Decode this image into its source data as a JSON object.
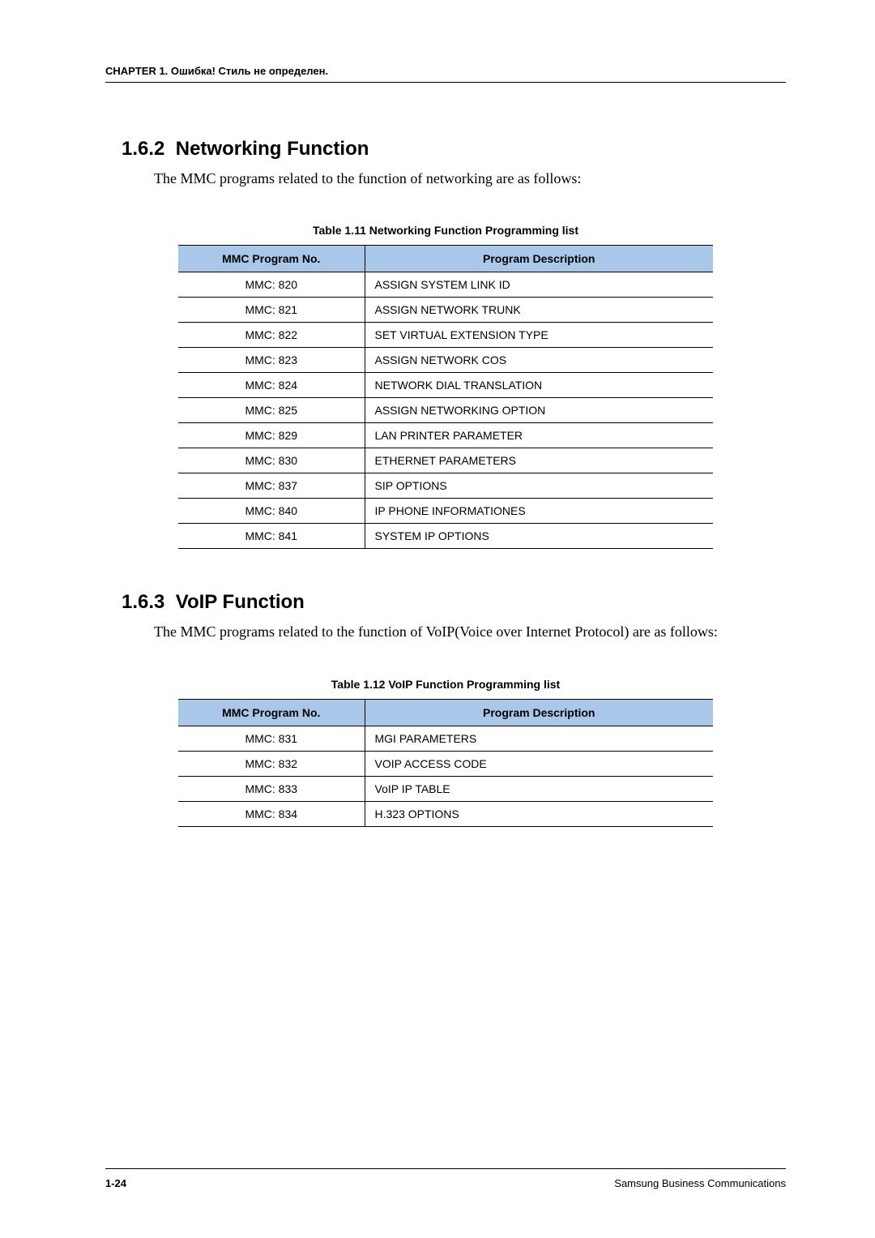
{
  "header": {
    "chapter_label": "CHAPTER 1. Ошибка! Стиль не определен."
  },
  "section1": {
    "number": "1.6.2",
    "title": "Networking Function",
    "intro": "The MMC programs related to the function of networking are as follows:",
    "table_caption": "Table 1.11   Networking Function Programming list",
    "columns": [
      "MMC Program No.",
      "Program Description"
    ],
    "rows": [
      [
        "MMC: 820",
        "ASSIGN SYSTEM LINK ID"
      ],
      [
        "MMC: 821",
        "ASSIGN NETWORK TRUNK"
      ],
      [
        "MMC: 822",
        "SET VIRTUAL EXTENSION TYPE"
      ],
      [
        "MMC: 823",
        "ASSIGN NETWORK COS"
      ],
      [
        "MMC: 824",
        "NETWORK DIAL TRANSLATION"
      ],
      [
        "MMC: 825",
        "ASSIGN NETWORKING OPTION"
      ],
      [
        "MMC: 829",
        "LAN PRINTER PARAMETER"
      ],
      [
        "MMC: 830",
        "ETHERNET PARAMETERS"
      ],
      [
        "MMC: 837",
        "SIP OPTIONS"
      ],
      [
        "MMC: 840",
        "IP PHONE INFORMATIONES"
      ],
      [
        "MMC: 841",
        "SYSTEM IP OPTIONS"
      ]
    ]
  },
  "section2": {
    "number": "1.6.3",
    "title": "VoIP Function",
    "intro": "The MMC programs related to the function of VoIP(Voice over Internet Protocol) are as follows:",
    "table_caption": "Table 1.12   VoIP Function Programming list",
    "columns": [
      "MMC Program No.",
      "Program Description"
    ],
    "rows": [
      [
        "MMC: 831",
        "MGI PARAMETERS"
      ],
      [
        "MMC: 832",
        "VOIP ACCESS CODE"
      ],
      [
        "MMC: 833",
        "VoIP IP TABLE"
      ],
      [
        "MMC: 834",
        "H.323 OPTIONS"
      ]
    ]
  },
  "footer": {
    "page_number": "1-24",
    "right_text": "Samsung Business Communications"
  },
  "styling": {
    "header_bg": "#a9c7e8",
    "body_font": "Times New Roman",
    "ui_font": "Arial",
    "heading_fontsize_pt": 18,
    "body_fontsize_pt": 13,
    "table_fontsize_pt": 10.5,
    "caption_fontsize_pt": 10.5,
    "page_bg": "#ffffff",
    "text_color": "#000000"
  }
}
